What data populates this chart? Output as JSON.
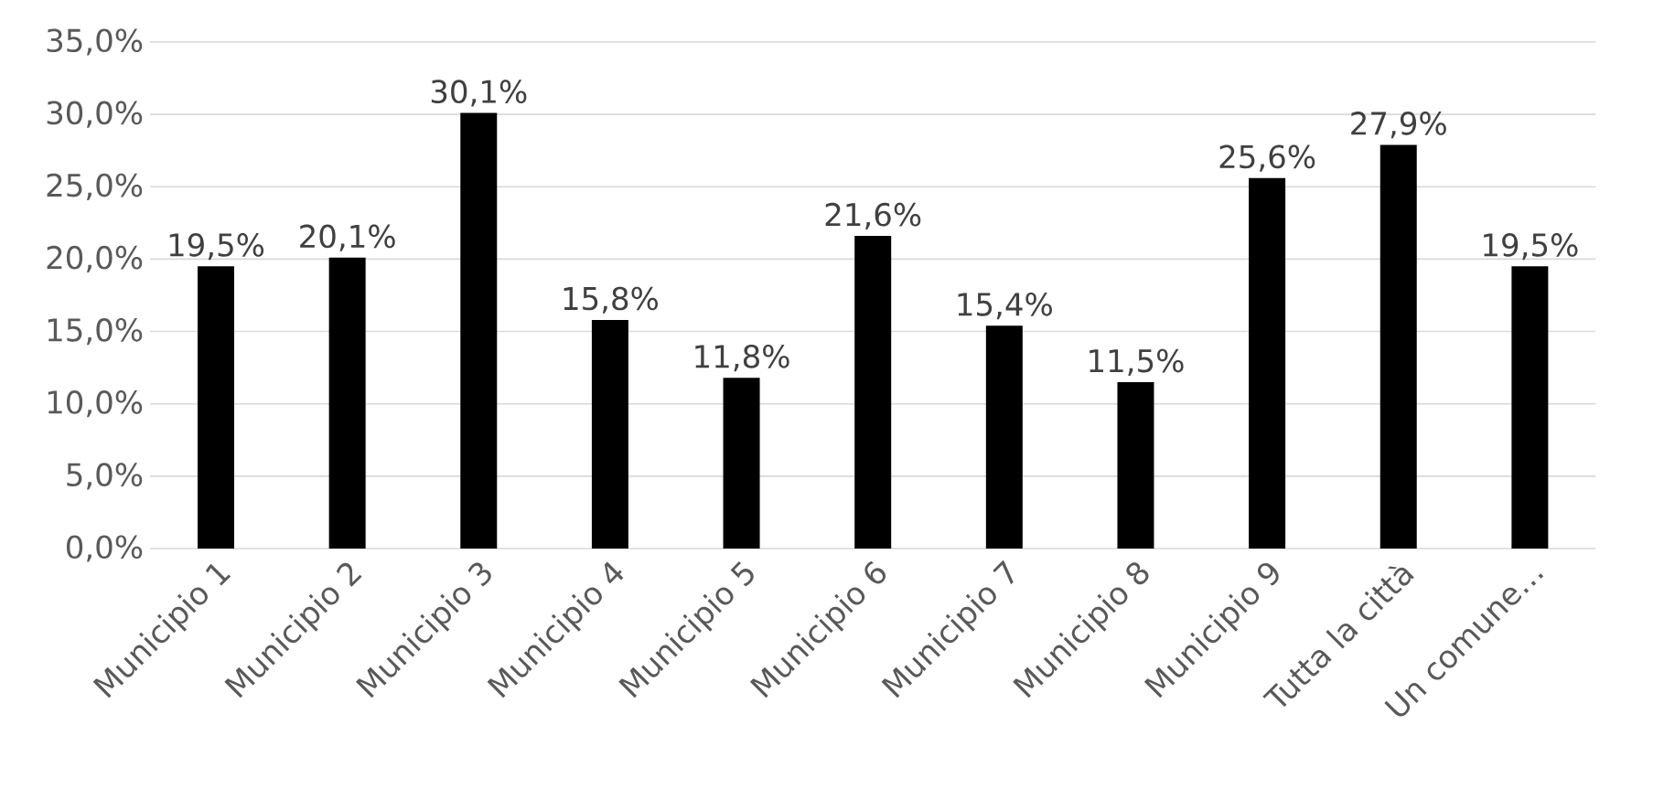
{
  "chart_data": {
    "type": "bar",
    "categories": [
      "Municipio 1",
      "Municipio 2",
      "Municipio 3",
      "Municipio 4",
      "Municipio 5",
      "Municipio 6",
      "Municipio 7",
      "Municipio 8",
      "Municipio 9",
      "Tutta la città",
      "Un comune…"
    ],
    "values": [
      19.5,
      20.1,
      30.1,
      15.8,
      11.8,
      21.6,
      15.4,
      11.5,
      25.6,
      27.9,
      19.5
    ],
    "value_labels": [
      "19,5%",
      "20,1%",
      "30,1%",
      "15,8%",
      "11,8%",
      "21,6%",
      "15,4%",
      "11,5%",
      "25,6%",
      "27,9%",
      "19,5%"
    ],
    "color": "#000000",
    "ylim": [
      0,
      35
    ],
    "yticks": [
      {
        "value": 0,
        "label": "0,0%"
      },
      {
        "value": 5,
        "label": "5,0%"
      },
      {
        "value": 10,
        "label": "10,0%"
      },
      {
        "value": 15,
        "label": "15,0%"
      },
      {
        "value": 20,
        "label": "20,0%"
      },
      {
        "value": 25,
        "label": "25,0%"
      },
      {
        "value": 30,
        "label": "30,0%"
      },
      {
        "value": 35,
        "label": "35,0%"
      }
    ],
    "grid": "y"
  }
}
